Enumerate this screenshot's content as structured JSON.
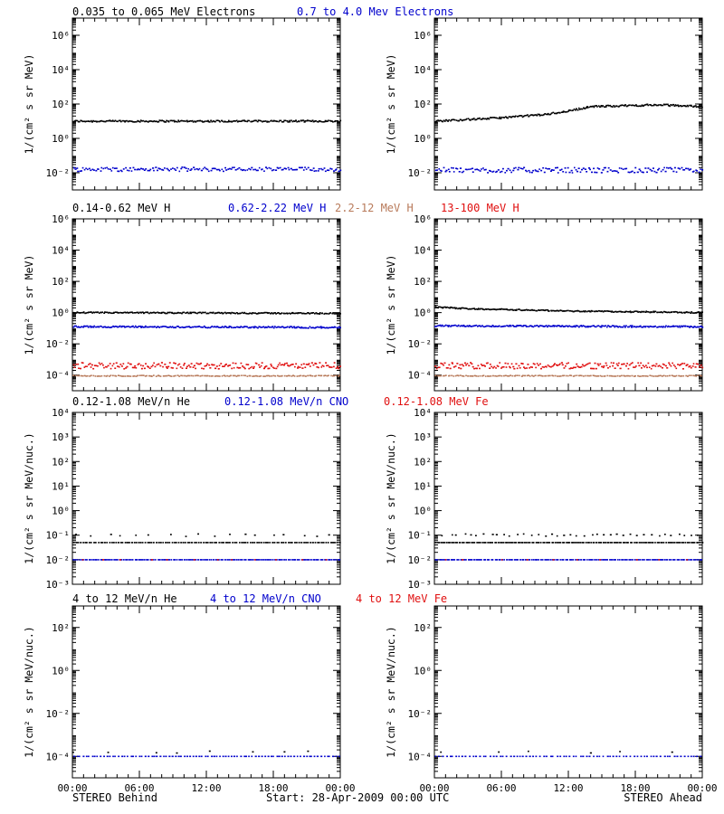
{
  "footer": {
    "left": "STEREO Behind",
    "center": "Start: 28-Apr-2009 00:00 UTC",
    "right": "STEREO Ahead"
  },
  "colors": {
    "black": "#000000",
    "blue": "#0000cc",
    "tan": "#b87a5a",
    "red": "#e01010"
  },
  "chart_data": [
    {
      "type": "scatter",
      "row": 1,
      "legend": [
        {
          "text": "0.035 to 0.065 MeV Electrons",
          "color": "black"
        },
        {
          "text": "0.7 to 4.0 Mev Electrons",
          "color": "blue"
        }
      ],
      "ylabel": "1/(cm² s sr MeV)",
      "yscale": "log",
      "ylim_exp": [
        -3,
        7
      ],
      "ytick_exps": [
        -2,
        0,
        2,
        4,
        6
      ],
      "ytick_labels": [
        "10⁻²",
        "10⁰",
        "10²",
        "10⁴",
        "10⁶"
      ],
      "xlim_hours": [
        0,
        24
      ],
      "xtick_labels": [],
      "panels": [
        {
          "spacecraft": "STEREO Behind",
          "series": [
            {
              "color": "black",
              "log10_knots": [
                [
                  0,
                  1.0
                ],
                [
                  12,
                  1.0
                ],
                [
                  24,
                  1.0
                ]
              ],
              "noise": 0.05,
              "n": 230
            },
            {
              "color": "blue",
              "log10_knots": [
                [
                  0,
                  -1.8
                ],
                [
                  24,
                  -1.8
                ]
              ],
              "noise": 0.12,
              "n": 170
            }
          ]
        },
        {
          "spacecraft": "STEREO Ahead",
          "series": [
            {
              "color": "black",
              "log10_knots": [
                [
                  0,
                  1.0
                ],
                [
                  6,
                  1.2
                ],
                [
                  10,
                  1.4
                ],
                [
                  12,
                  1.6
                ],
                [
                  14,
                  1.85
                ],
                [
                  20,
                  1.95
                ],
                [
                  24,
                  1.85
                ]
              ],
              "noise": 0.05,
              "n": 230
            },
            {
              "color": "blue",
              "log10_knots": [
                [
                  0,
                  -1.85
                ],
                [
                  24,
                  -1.85
                ]
              ],
              "noise": 0.15,
              "n": 170
            }
          ]
        }
      ]
    },
    {
      "type": "scatter",
      "row": 2,
      "legend": [
        {
          "text": "0.14-0.62 MeV H",
          "color": "black"
        },
        {
          "text": "0.62-2.22 MeV H",
          "color": "blue"
        },
        {
          "text": "2.2-12 MeV H",
          "color": "tan"
        },
        {
          "text": "13-100 MeV H",
          "color": "red"
        }
      ],
      "ylabel": "1/(cm² s sr MeV)",
      "yscale": "log",
      "ylim_exp": [
        -5,
        6
      ],
      "ytick_exps": [
        -4,
        -2,
        0,
        2,
        4,
        6
      ],
      "ytick_labels": [
        "10⁻⁴",
        "10⁻²",
        "10⁰",
        "10²",
        "10⁴",
        "10⁶"
      ],
      "xlim_hours": [
        0,
        24
      ],
      "xtick_labels": [],
      "panels": [
        {
          "spacecraft": "STEREO Behind",
          "series": [
            {
              "color": "black",
              "log10_knots": [
                [
                  0,
                  0.0
                ],
                [
                  24,
                  -0.05
                ]
              ],
              "noise": 0.04,
              "n": 230
            },
            {
              "color": "blue",
              "log10_knots": [
                [
                  0,
                  -0.9
                ],
                [
                  24,
                  -0.95
                ]
              ],
              "noise": 0.05,
              "n": 230
            },
            {
              "color": "tan",
              "log10_knots": [
                [
                  0,
                  -4.05
                ],
                [
                  24,
                  -4.05
                ]
              ],
              "noise": 0.03,
              "n": 150
            },
            {
              "color": "red",
              "log10_knots": [
                [
                  0,
                  -3.4
                ],
                [
                  24,
                  -3.4
                ]
              ],
              "noise": 0.2,
              "n": 200
            }
          ]
        },
        {
          "spacecraft": "STEREO Ahead",
          "series": [
            {
              "color": "black",
              "log10_knots": [
                [
                  0,
                  0.35
                ],
                [
                  3,
                  0.25
                ],
                [
                  12,
                  0.1
                ],
                [
                  24,
                  0.0
                ]
              ],
              "noise": 0.04,
              "n": 230
            },
            {
              "color": "blue",
              "log10_knots": [
                [
                  0,
                  -0.85
                ],
                [
                  24,
                  -0.9
                ]
              ],
              "noise": 0.05,
              "n": 230
            },
            {
              "color": "tan",
              "log10_knots": [
                [
                  0,
                  -4.05
                ],
                [
                  24,
                  -4.05
                ]
              ],
              "noise": 0.03,
              "n": 150
            },
            {
              "color": "red",
              "log10_knots": [
                [
                  0,
                  -3.4
                ],
                [
                  24,
                  -3.4
                ]
              ],
              "noise": 0.2,
              "n": 200
            }
          ]
        }
      ]
    },
    {
      "type": "scatter",
      "row": 3,
      "legend": [
        {
          "text": "0.12-1.08 MeV/n He",
          "color": "black"
        },
        {
          "text": "0.12-1.08 MeV/n CNO",
          "color": "blue"
        },
        {
          "text": "0.12-1.08 MeV Fe",
          "color": "red"
        }
      ],
      "ylabel": "1/(cm² s sr MeV/nuc.)",
      "yscale": "log",
      "ylim_exp": [
        -3,
        4
      ],
      "ytick_exps": [
        -3,
        -2,
        -1,
        0,
        1,
        2,
        3,
        4
      ],
      "ytick_labels": [
        "10⁻³",
        "10⁻²",
        "10⁻¹",
        "10⁰",
        "10¹",
        "10²",
        "10³",
        "10⁴"
      ],
      "xlim_hours": [
        0,
        24
      ],
      "xtick_labels": [],
      "panels": [
        {
          "spacecraft": "STEREO Behind",
          "series": [
            {
              "color": "black",
              "log10_knots": [
                [
                  0,
                  -1.3
                ],
                [
                  24,
                  -1.3
                ]
              ],
              "noise": 0.0,
              "n": 120
            },
            {
              "color": "black",
              "log10_knots": [
                [
                  0,
                  -1.0
                ],
                [
                  24,
                  -1.0
                ]
              ],
              "noise": 0.05,
              "n": 18
            },
            {
              "color": "blue",
              "log10_knots": [
                [
                  0,
                  -2.0
                ],
                [
                  24,
                  -2.0
                ]
              ],
              "noise": 0.0,
              "n": 140
            },
            {
              "color": "red",
              "log10_knots": [
                [
                  0,
                  -2.0
                ],
                [
                  24,
                  -2.0
                ]
              ],
              "noise": 0.0,
              "n": 12
            }
          ]
        },
        {
          "spacecraft": "STEREO Ahead",
          "series": [
            {
              "color": "black",
              "log10_knots": [
                [
                  0,
                  -1.3
                ],
                [
                  24,
                  -1.3
                ]
              ],
              "noise": 0.0,
              "n": 150
            },
            {
              "color": "black",
              "log10_knots": [
                [
                  0,
                  -1.0
                ],
                [
                  24,
                  -1.0
                ]
              ],
              "noise": 0.05,
              "n": 40
            },
            {
              "color": "blue",
              "log10_knots": [
                [
                  0,
                  -2.0
                ],
                [
                  24,
                  -2.0
                ]
              ],
              "noise": 0.0,
              "n": 140
            },
            {
              "color": "red",
              "log10_knots": [
                [
                  0,
                  -2.0
                ],
                [
                  24,
                  -2.0
                ]
              ],
              "noise": 0.0,
              "n": 10
            }
          ]
        }
      ]
    },
    {
      "type": "scatter",
      "row": 4,
      "legend": [
        {
          "text": "4 to 12 MeV/n He",
          "color": "black"
        },
        {
          "text": "4 to 12 MeV/n CNO",
          "color": "blue"
        },
        {
          "text": "4 to 12 MeV Fe",
          "color": "red"
        }
      ],
      "ylabel": "1/(cm² s sr MeV/nuc.)",
      "yscale": "log",
      "ylim_exp": [
        -5,
        3
      ],
      "ytick_exps": [
        -4,
        -2,
        0,
        2
      ],
      "ytick_labels": [
        "10⁻⁴",
        "10⁻²",
        "10⁰",
        "10²"
      ],
      "xlim_hours": [
        0,
        24
      ],
      "xtick_labels": [
        "00:00",
        "06:00",
        "12:00",
        "18:00",
        "00:00"
      ],
      "panels": [
        {
          "spacecraft": "STEREO Behind",
          "series": [
            {
              "color": "blue",
              "log10_knots": [
                [
                  0,
                  -4.0
                ],
                [
                  24,
                  -4.0
                ]
              ],
              "noise": 0.0,
              "n": 90
            },
            {
              "color": "black",
              "log10_knots": [
                [
                  0,
                  -3.8
                ],
                [
                  24,
                  -3.8
                ]
              ],
              "noise": 0.05,
              "n": 8
            }
          ]
        },
        {
          "spacecraft": "STEREO Ahead",
          "series": [
            {
              "color": "blue",
              "log10_knots": [
                [
                  0,
                  -4.0
                ],
                [
                  24,
                  -4.0
                ]
              ],
              "noise": 0.0,
              "n": 80
            },
            {
              "color": "black",
              "log10_knots": [
                [
                  0,
                  -3.8
                ],
                [
                  24,
                  -3.8
                ]
              ],
              "noise": 0.05,
              "n": 6
            }
          ]
        }
      ]
    }
  ]
}
